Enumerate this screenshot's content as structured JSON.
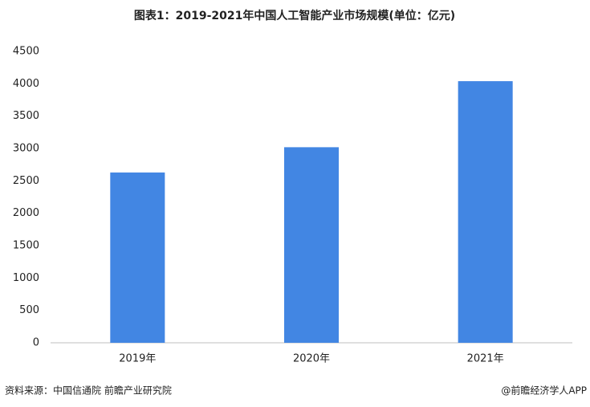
{
  "chart_data": {
    "type": "bar",
    "title": "图表1：2019-2021年中国人工智能产业市场规模(单位：亿元)",
    "categories": [
      "2019年",
      "2020年",
      "2021年"
    ],
    "values": [
      2630,
      3020,
      4040
    ],
    "color": "#4286e3",
    "ylim": [
      0,
      4500
    ],
    "yticks": [
      0,
      500,
      1000,
      1500,
      2000,
      2500,
      3000,
      3500,
      4000,
      4500
    ],
    "grid": false,
    "source": "资料来源：中国信通院 前瞻产业研究院",
    "credit": "@前瞻经济学人APP"
  }
}
